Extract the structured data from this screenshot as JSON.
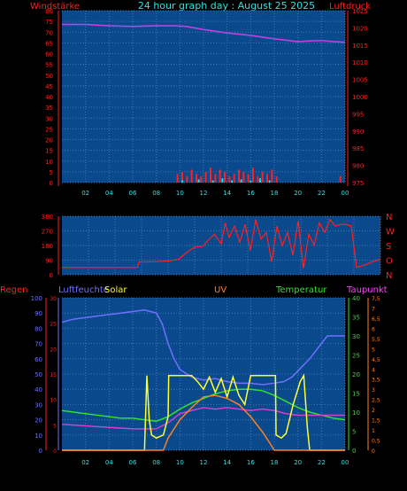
{
  "title": "24 hour graph day : August 25 2025",
  "colors": {
    "background": "#000000",
    "plot_bg": "#0a4a8c",
    "grid": "#3f78b4",
    "axis": "#a0a0a0"
  },
  "chart_data": [
    {
      "type": "line",
      "left_label": "Windstärke",
      "right_label": "Luftdruck",
      "left_ticks": [
        "0",
        "5",
        "10",
        "15",
        "20",
        "25",
        "30",
        "35",
        "40",
        "45",
        "50",
        "55",
        "60",
        "65",
        "70",
        "75",
        "80"
      ],
      "right_ticks": [
        "975",
        "980",
        "985",
        "990",
        "995",
        "1000",
        "1005",
        "1010",
        "1015",
        "1020",
        "1025"
      ],
      "x_ticks": [
        "02",
        "04",
        "06",
        "08",
        "10",
        "12",
        "14",
        "16",
        "18",
        "20",
        "22",
        "00"
      ],
      "ylim_left": [
        0,
        80
      ],
      "ylim_right": [
        975,
        1025
      ],
      "series": [
        {
          "color": "#c040e0",
          "axis": "right",
          "x": [
            0,
            2,
            4,
            6,
            8,
            9.5,
            10.5,
            12,
            14,
            16,
            18,
            20,
            21,
            22,
            23,
            24
          ],
          "y": [
            1021,
            1021,
            1020.6,
            1020.4,
            1020.6,
            1020.6,
            1020.4,
            1019.5,
            1018.5,
            1017.8,
            1016.8,
            1016.0,
            1016.2,
            1016.3,
            1016.0,
            1015.8
          ]
        },
        {
          "color": "#ff2020",
          "axis": "left",
          "type": "bar",
          "x": [
            9.8,
            10.2,
            10.6,
            11.0,
            11.4,
            11.8,
            12.2,
            12.6,
            13.0,
            13.4,
            13.8,
            14.2,
            14.6,
            15.0,
            15.4,
            15.8,
            16.2,
            16.6,
            17.0,
            17.4,
            17.8,
            18.2,
            23.6
          ],
          "y": [
            4,
            5,
            3,
            6,
            4,
            3,
            5,
            7,
            4,
            6,
            5,
            3,
            4,
            6,
            5,
            4,
            7,
            3,
            5,
            4,
            6,
            3,
            3
          ]
        },
        {
          "color": "#00e0ff",
          "axis": "left",
          "type": "bar",
          "x": [
            10.2,
            11.6,
            12.8,
            13.6,
            14.4,
            15.2,
            16.0,
            16.8,
            17.6
          ],
          "y": [
            1,
            1.5,
            1,
            2,
            1,
            1.5,
            1,
            2,
            1
          ]
        }
      ]
    },
    {
      "type": "line",
      "left_ticks": [
        "0",
        "90",
        "180",
        "270",
        "360"
      ],
      "right_ticks": [
        "N",
        "W",
        "S",
        "O",
        "N"
      ],
      "ylim_left": [
        0,
        360
      ],
      "series": [
        {
          "color": "#ff2020",
          "x": [
            0,
            1,
            2,
            3,
            4,
            5,
            5.7,
            5.8,
            7,
            8,
            8.8,
            9.3,
            9.6,
            10,
            10.6,
            11,
            11.5,
            12,
            12.3,
            12.6,
            13,
            13.4,
            13.8,
            14.2,
            14.6,
            15,
            15.4,
            15.8,
            16.2,
            16.6,
            17,
            17.4,
            17.8,
            18.2,
            18.6,
            19,
            19.4,
            19.8,
            20.2,
            20.6,
            21,
            21.4,
            21.8,
            22.2,
            22.6,
            23,
            23.4,
            24
          ],
          "y": [
            45,
            45,
            45,
            45,
            45,
            45,
            45,
            78,
            80,
            85,
            95,
            130,
            150,
            170,
            175,
            210,
            250,
            190,
            320,
            230,
            300,
            200,
            310,
            150,
            340,
            220,
            260,
            80,
            300,
            180,
            260,
            120,
            330,
            40,
            250,
            180,
            320,
            260,
            340,
            300,
            310,
            310,
            300,
            45,
            55,
            65,
            80,
            95
          ]
        }
      ]
    },
    {
      "type": "line",
      "labels": [
        "Regen",
        "Luftfeuchte",
        "Solar",
        "UV",
        "Temperatur",
        "Taupunkt"
      ],
      "regen_ticks": [
        "0",
        "10",
        "20",
        "30",
        "40",
        "50",
        "60",
        "70",
        "80",
        "90",
        "100"
      ],
      "luftfeuchte_ticks": [
        "0",
        "5",
        "10",
        "15",
        "20",
        "25",
        "30"
      ],
      "temperatur_ticks": [
        "0",
        "5",
        "10",
        "15",
        "20",
        "25",
        "30",
        "35",
        "40"
      ],
      "taupunkt_ticks": [
        "0",
        "0,5",
        "1",
        "1,5",
        "2",
        "2,5",
        "3",
        "3,5",
        "4",
        "4,5",
        "5",
        "5,5",
        "6",
        "6,5",
        "7",
        "7,5"
      ],
      "x_ticks": [
        "02",
        "04",
        "06",
        "08",
        "10",
        "12",
        "14",
        "16",
        "18",
        "20",
        "22",
        "00"
      ],
      "ylim": [
        0,
        100
      ],
      "series": [
        {
          "color": "#7070ff",
          "x": [
            0,
            1,
            2,
            3,
            4,
            5,
            6,
            7,
            8,
            8.5,
            9,
            9.5,
            10,
            11,
            12,
            13,
            14,
            15,
            16,
            17,
            18,
            18.8,
            19.5,
            20,
            21,
            22,
            22.5,
            23,
            24
          ],
          "y": [
            84,
            86,
            87,
            88,
            89,
            90,
            91,
            92,
            90,
            83,
            70,
            60,
            53,
            48,
            46,
            47,
            45,
            44,
            44,
            43,
            44,
            45,
            48,
            52,
            60,
            70,
            75,
            75,
            75
          ]
        },
        {
          "color": "#30e030",
          "x": [
            0,
            1,
            2,
            3,
            4,
            5,
            6,
            7,
            8,
            9,
            10,
            11,
            12,
            13,
            14,
            15,
            16,
            17,
            18,
            19,
            20,
            21,
            22,
            23,
            24
          ],
          "y": [
            26,
            25,
            24,
            23,
            22,
            21,
            21,
            20,
            19,
            22,
            27,
            31,
            34,
            37,
            39,
            40,
            40,
            39,
            36,
            32,
            28,
            25,
            23,
            21,
            20
          ]
        },
        {
          "color": "#d040d0",
          "x": [
            0,
            2,
            4,
            6,
            7,
            8,
            9,
            10,
            11,
            12,
            13,
            14,
            15,
            16,
            17,
            18,
            19,
            20,
            21,
            22,
            23,
            24
          ],
          "y": [
            17,
            16,
            15,
            14,
            14,
            14,
            18,
            24,
            26,
            28,
            27,
            28,
            27,
            26,
            27,
            26,
            24,
            23,
            23,
            23,
            23,
            23
          ]
        },
        {
          "color": "#ffff30",
          "x": [
            0,
            7.0,
            7.2,
            7.4,
            7.6,
            8,
            8.6,
            9.0,
            9.05,
            9.1,
            10,
            11,
            11.5,
            12,
            12.5,
            13,
            13.5,
            14,
            14.5,
            15,
            15.5,
            16,
            17,
            18,
            18.1,
            18.15,
            18.6,
            19,
            19.6,
            20.2,
            20.5,
            20.8,
            21,
            24
          ],
          "y": [
            0,
            0,
            49,
            20,
            10,
            8,
            10,
            22,
            49,
            49,
            49,
            49,
            45,
            40,
            48,
            38,
            47,
            35,
            48,
            36,
            30,
            49,
            49,
            49,
            49,
            10,
            8,
            11,
            30,
            45,
            49,
            15,
            0,
            0
          ]
        },
        {
          "color": "#ff8020",
          "x": [
            0,
            8.6,
            9,
            10,
            11,
            12,
            13,
            14,
            15,
            16,
            17,
            17.6,
            18,
            24
          ],
          "y": [
            0,
            0,
            8,
            20,
            28,
            35,
            36,
            34,
            30,
            22,
            12,
            5,
            0,
            0
          ]
        }
      ]
    }
  ]
}
